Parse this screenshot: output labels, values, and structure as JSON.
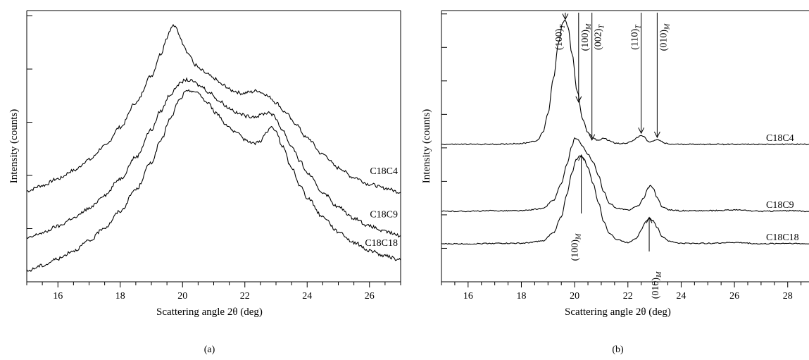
{
  "chart_data": [
    {
      "type": "line",
      "panel_label": "(a)",
      "xlabel": "Scattering angle 2θ (deg)",
      "ylabel": "Intensity (counts)",
      "xlim": [
        15,
        27
      ],
      "x_ticks": [
        16,
        18,
        20,
        22,
        24,
        26
      ],
      "y_tick_labels": "none",
      "series": [
        {
          "name": "C18C4",
          "x": [
            15.0,
            15.5,
            16.0,
            16.5,
            17.0,
            17.5,
            18.0,
            18.5,
            19.0,
            19.3,
            19.5,
            19.6,
            19.7,
            19.8,
            19.9,
            20.0,
            20.2,
            20.4,
            20.6,
            20.8,
            21.0,
            21.3,
            21.6,
            21.9,
            22.2,
            22.4,
            22.6,
            22.8,
            23.0,
            23.3,
            23.6,
            24.0,
            24.5,
            25.0,
            25.5,
            26.0,
            26.5,
            27.0
          ],
          "y": [
            0.335,
            0.355,
            0.38,
            0.41,
            0.45,
            0.5,
            0.57,
            0.66,
            0.76,
            0.84,
            0.9,
            0.93,
            0.945,
            0.935,
            0.91,
            0.88,
            0.84,
            0.8,
            0.78,
            0.765,
            0.75,
            0.725,
            0.705,
            0.695,
            0.7,
            0.705,
            0.695,
            0.68,
            0.66,
            0.625,
            0.585,
            0.53,
            0.47,
            0.42,
            0.385,
            0.36,
            0.345,
            0.33
          ]
        },
        {
          "name": "C18C9",
          "x": [
            15.0,
            15.5,
            16.0,
            16.5,
            17.0,
            17.5,
            18.0,
            18.5,
            19.0,
            19.3,
            19.6,
            19.9,
            20.1,
            20.3,
            20.6,
            20.9,
            21.2,
            21.5,
            21.8,
            22.1,
            22.4,
            22.6,
            22.8,
            22.9,
            23.0,
            23.2,
            23.5,
            23.8,
            24.0,
            24.5,
            25.0,
            25.5,
            26.0,
            26.5,
            27.0
          ],
          "y": [
            0.16,
            0.18,
            0.205,
            0.235,
            0.27,
            0.32,
            0.38,
            0.46,
            0.56,
            0.63,
            0.69,
            0.73,
            0.745,
            0.74,
            0.72,
            0.695,
            0.665,
            0.64,
            0.62,
            0.61,
            0.61,
            0.62,
            0.625,
            0.615,
            0.6,
            0.56,
            0.5,
            0.44,
            0.4,
            0.33,
            0.275,
            0.235,
            0.205,
            0.185,
            0.17
          ]
        },
        {
          "name": "C18C18",
          "x": [
            15.0,
            15.5,
            16.0,
            16.5,
            17.0,
            17.5,
            18.0,
            18.5,
            19.0,
            19.3,
            19.6,
            19.9,
            20.1,
            20.3,
            20.5,
            20.8,
            21.1,
            21.4,
            21.7,
            22.0,
            22.3,
            22.5,
            22.7,
            22.85,
            23.0,
            23.2,
            23.5,
            23.8,
            24.0,
            24.5,
            25.0,
            25.5,
            26.0,
            26.5,
            27.0
          ],
          "y": [
            0.04,
            0.06,
            0.085,
            0.115,
            0.15,
            0.2,
            0.26,
            0.34,
            0.44,
            0.52,
            0.6,
            0.67,
            0.7,
            0.705,
            0.695,
            0.66,
            0.62,
            0.58,
            0.55,
            0.525,
            0.51,
            0.52,
            0.55,
            0.57,
            0.555,
            0.5,
            0.42,
            0.35,
            0.31,
            0.24,
            0.185,
            0.145,
            0.115,
            0.095,
            0.08
          ]
        }
      ]
    },
    {
      "type": "line",
      "panel_label": "(b)",
      "xlabel": "Scattering angle 2θ (deg)",
      "ylabel": "Intensity (counts)",
      "xlim": [
        15,
        28.8
      ],
      "x_ticks": [
        16,
        18,
        20,
        22,
        24,
        26,
        28
      ],
      "y_tick_labels": "none",
      "series": [
        {
          "name": "C18C4",
          "baseline": 0.507,
          "x": [
            15.0,
            16.0,
            17.0,
            18.0,
            18.6,
            18.8,
            19.0,
            19.2,
            19.4,
            19.55,
            19.65,
            19.75,
            19.9,
            20.1,
            20.3,
            20.5,
            20.7,
            20.9,
            21.1,
            21.3,
            21.6,
            21.9,
            22.2,
            22.4,
            22.5,
            22.6,
            22.8,
            23.0,
            23.1,
            23.2,
            23.4,
            23.6,
            24.0,
            25.0,
            26.0,
            27.0,
            28.0,
            28.8
          ],
          "y": [
            0.507,
            0.507,
            0.507,
            0.51,
            0.52,
            0.55,
            0.62,
            0.75,
            0.88,
            0.955,
            0.965,
            0.94,
            0.84,
            0.7,
            0.6,
            0.55,
            0.53,
            0.52,
            0.53,
            0.52,
            0.51,
            0.51,
            0.52,
            0.535,
            0.54,
            0.535,
            0.515,
            0.52,
            0.525,
            0.52,
            0.51,
            0.507,
            0.507,
            0.507,
            0.507,
            0.507,
            0.507,
            0.507
          ]
        },
        {
          "name": "C18C9",
          "baseline": 0.26,
          "x": [
            15.0,
            16.0,
            17.0,
            18.0,
            18.8,
            19.2,
            19.5,
            19.7,
            19.9,
            20.0,
            20.1,
            20.3,
            20.5,
            20.7,
            20.9,
            21.1,
            21.3,
            21.6,
            22.0,
            22.4,
            22.6,
            22.75,
            22.85,
            22.95,
            23.1,
            23.3,
            23.6,
            24.0,
            25.0,
            26.0,
            27.0,
            28.0,
            28.8
          ],
          "y": [
            0.26,
            0.26,
            0.262,
            0.262,
            0.27,
            0.3,
            0.36,
            0.43,
            0.5,
            0.53,
            0.525,
            0.5,
            0.47,
            0.44,
            0.39,
            0.33,
            0.29,
            0.27,
            0.265,
            0.28,
            0.31,
            0.345,
            0.355,
            0.345,
            0.31,
            0.275,
            0.265,
            0.262,
            0.262,
            0.265,
            0.26,
            0.262,
            0.26
          ]
        },
        {
          "name": "C18C18",
          "baseline": 0.14,
          "x": [
            15.0,
            16.0,
            17.0,
            18.0,
            18.8,
            19.2,
            19.5,
            19.7,
            19.9,
            20.05,
            20.2,
            20.35,
            20.5,
            20.7,
            20.9,
            21.1,
            21.3,
            21.6,
            22.0,
            22.3,
            22.5,
            22.65,
            22.8,
            22.95,
            23.1,
            23.3,
            23.6,
            24.0,
            25.0,
            26.0,
            27.0,
            28.0,
            28.8
          ],
          "y": [
            0.14,
            0.14,
            0.142,
            0.142,
            0.15,
            0.18,
            0.24,
            0.32,
            0.4,
            0.45,
            0.465,
            0.455,
            0.42,
            0.36,
            0.29,
            0.22,
            0.18,
            0.155,
            0.145,
            0.16,
            0.19,
            0.22,
            0.235,
            0.225,
            0.2,
            0.165,
            0.148,
            0.142,
            0.142,
            0.145,
            0.14,
            0.142,
            0.14
          ]
        }
      ],
      "annotations": [
        {
          "text": "(100)",
          "sub": "T",
          "x": 19.65,
          "arrow_to_y": 0.965,
          "label_y": 0.87,
          "side": "left"
        },
        {
          "text": "(100)",
          "sub": "M",
          "x": 20.15,
          "arrow_to_y": 0.66,
          "label_y": 0.91,
          "side": "right"
        },
        {
          "text": "(002)",
          "sub": "T",
          "x": 20.65,
          "arrow_to_y": 0.52,
          "label_y": 0.7,
          "side": "right"
        },
        {
          "text": "(110)",
          "sub": "T",
          "x": 22.5,
          "arrow_to_y": 0.545,
          "label_y": 0.74,
          "side": "left"
        },
        {
          "text": "(010)",
          "sub": "M",
          "x": 23.1,
          "arrow_to_y": 0.53,
          "label_y": 0.74,
          "side": "right"
        },
        {
          "text": "(100)",
          "sub": "M",
          "x": 20.25,
          "arrow_to_y": 0.47,
          "label_y": 0.2,
          "side": "left",
          "below": true
        },
        {
          "text": "(010)",
          "sub": "M",
          "x": 22.8,
          "arrow_to_y": 0.24,
          "label_y": 0.06,
          "side": "right",
          "below": true
        }
      ]
    }
  ]
}
